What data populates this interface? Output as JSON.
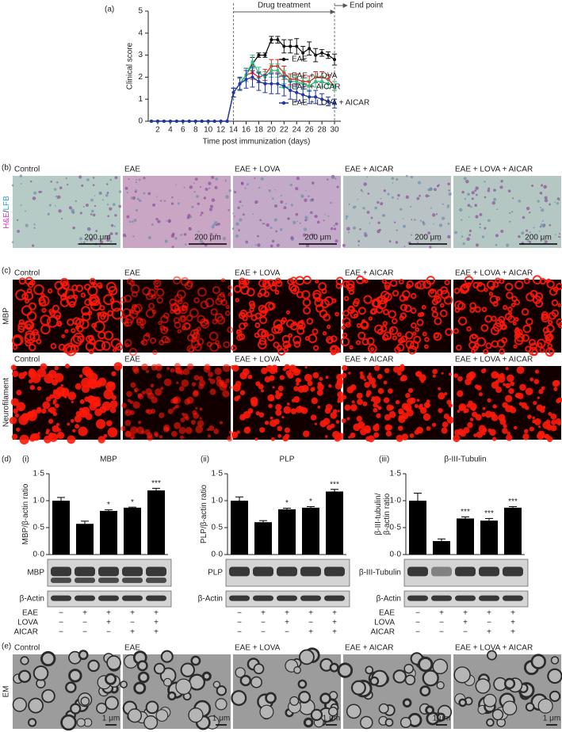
{
  "chart_data": [
    {
      "type": "line",
      "panel": "(a)",
      "y_label": "Clinical score",
      "x_label": "Time post immunization (days)",
      "x": [
        1,
        2,
        3,
        4,
        5,
        6,
        7,
        8,
        9,
        10,
        11,
        12,
        13,
        14,
        15,
        16,
        17,
        18,
        19,
        20,
        21,
        22,
        23,
        24,
        25,
        26,
        27,
        28,
        29,
        30
      ],
      "xlim": [
        0.5,
        31
      ],
      "xticks": [
        2,
        4,
        6,
        8,
        10,
        12,
        14,
        16,
        18,
        20,
        22,
        24,
        26,
        28,
        30
      ],
      "ylim": [
        0,
        5
      ],
      "yticks": [
        0,
        1,
        2,
        3,
        4,
        5
      ],
      "legend": "right",
      "annotations": [
        {
          "text": "Drug treatment",
          "from": 14,
          "to": 30
        },
        {
          "text": "End point",
          "x": 30
        }
      ],
      "series": [
        {
          "name": "EAE",
          "color": "#111111",
          "values": [
            0,
            0,
            0,
            0,
            0,
            0,
            0,
            0,
            0,
            0,
            0,
            0,
            0,
            1.3,
            1.7,
            2.1,
            2.6,
            3.0,
            3.0,
            3.7,
            3.7,
            3.4,
            3.4,
            3.4,
            3.1,
            3.3,
            3.0,
            3.1,
            3.0,
            2.8
          ],
          "errors": [
            null,
            null,
            null,
            null,
            null,
            null,
            null,
            null,
            null,
            null,
            null,
            null,
            null,
            0.2,
            0.25,
            0.3,
            0.3,
            0.1,
            0.1,
            0.15,
            0.15,
            0.3,
            0.3,
            0.35,
            0.3,
            0.3,
            0.3,
            0.15,
            0.15,
            0.25
          ]
        },
        {
          "name": "EAE + LOVA",
          "color": "#e0251b",
          "values": [
            0,
            0,
            0,
            0,
            0,
            0,
            0,
            0,
            0,
            0,
            0,
            0,
            0,
            1.3,
            1.7,
            2.1,
            2.2,
            2.0,
            2.1,
            2.5,
            2.5,
            2.2,
            1.9,
            1.9,
            1.8,
            1.8,
            2.0,
            2.0,
            1.9,
            1.6
          ],
          "errors": [
            null,
            null,
            null,
            null,
            null,
            null,
            null,
            null,
            null,
            null,
            null,
            null,
            null,
            0.2,
            0.25,
            0.3,
            0.3,
            0.25,
            0.25,
            0.3,
            0.3,
            0.3,
            0.25,
            0.25,
            0.25,
            0.25,
            0.25,
            0.25,
            0.2,
            0.2
          ]
        },
        {
          "name": "EAE + AICAR",
          "color": "#2fbf86",
          "values": [
            0,
            0,
            0,
            0,
            0,
            0,
            0,
            0,
            0,
            0,
            0,
            0,
            0,
            1.3,
            1.7,
            2.1,
            2.7,
            2.2,
            2.0,
            2.3,
            2.3,
            2.0,
            1.8,
            1.8,
            1.7,
            1.6,
            1.8,
            1.8,
            1.7,
            1.6
          ],
          "errors": [
            null,
            null,
            null,
            null,
            null,
            null,
            null,
            null,
            null,
            null,
            null,
            null,
            null,
            0.2,
            0.25,
            0.3,
            0.3,
            0.25,
            0.25,
            0.3,
            0.3,
            0.3,
            0.25,
            0.25,
            0.25,
            0.25,
            0.25,
            0.25,
            0.2,
            0.2
          ]
        },
        {
          "name": "EAE + LOVA + AICAR",
          "color": "#1f35a8",
          "values": [
            0,
            0,
            0,
            0,
            0,
            0,
            0,
            0,
            0,
            0,
            0,
            0,
            0,
            1.3,
            1.7,
            1.9,
            2.0,
            1.8,
            1.7,
            1.7,
            1.7,
            1.6,
            1.4,
            1.3,
            1.2,
            1.1,
            1.1,
            1.0,
            0.9,
            0.8
          ],
          "errors": [
            null,
            null,
            null,
            null,
            null,
            null,
            null,
            null,
            null,
            null,
            null,
            null,
            null,
            0.2,
            0.3,
            0.4,
            0.45,
            0.4,
            0.4,
            0.45,
            0.45,
            0.45,
            0.4,
            0.4,
            0.35,
            0.3,
            0.3,
            0.25,
            0.2,
            0.2
          ]
        }
      ]
    },
    {
      "type": "bar",
      "panel": "(i)",
      "title": "MBP",
      "y_label": [
        "MBP/β-actin ratio"
      ],
      "categories": [
        null,
        null,
        null,
        null,
        null
      ],
      "color": "#000000",
      "values": [
        1.0,
        0.57,
        0.81,
        0.87,
        1.19
      ],
      "errors": [
        0.06,
        0.05,
        0.02,
        0.01,
        0.04
      ],
      "annotations": [
        null,
        null,
        "*",
        "*",
        "***"
      ],
      "ylim": [
        0,
        1.5
      ],
      "yticks": [
        {
          "value": 0,
          "label": "0·0"
        },
        {
          "value": 0.5,
          "label": "0·5"
        },
        {
          "value": 1,
          "label": "1·0"
        },
        {
          "value": 1.5,
          "label": "1·5"
        }
      ],
      "blot_labels": [
        "MBP",
        "β-Actin"
      ],
      "show_treatment_labels": true
    },
    {
      "type": "bar",
      "panel": "(ii)",
      "title": "PLP",
      "y_label": [
        "PLP/β-actin ratio"
      ],
      "categories": [
        null,
        null,
        null,
        null,
        null
      ],
      "color": "#000000",
      "values": [
        1.0,
        0.6,
        0.84,
        0.87,
        1.17
      ],
      "errors": [
        0.07,
        0.03,
        0.02,
        0.02,
        0.04
      ],
      "annotations": [
        null,
        null,
        "*",
        "*",
        "***"
      ],
      "ylim": [
        0,
        1.5
      ],
      "yticks": [
        {
          "value": 0,
          "label": "0·0"
        },
        {
          "value": 0.5,
          "label": "0·5"
        },
        {
          "value": 1,
          "label": "1·0"
        },
        {
          "value": 1.5,
          "label": "1·5"
        }
      ],
      "blot_labels": [
        "PLP",
        "β-Actin"
      ],
      "show_treatment_labels": false
    },
    {
      "type": "bar",
      "panel": "(iii)",
      "title": "β-III-Tubulin",
      "y_label": [
        "β-III-tubulin/",
        "β-actin ratio"
      ],
      "categories": [
        null,
        null,
        null,
        null,
        null
      ],
      "color": "#000000",
      "values": [
        1.0,
        0.25,
        0.67,
        0.63,
        0.87
      ],
      "errors": [
        0.14,
        0.04,
        0.03,
        0.04,
        0.02
      ],
      "annotations": [
        null,
        null,
        "***",
        "***",
        "***"
      ],
      "ylim": [
        0,
        1.5
      ],
      "yticks": [
        {
          "value": 0,
          "label": "0·0"
        },
        {
          "value": 0.5,
          "label": "0·5"
        },
        {
          "value": 1,
          "label": "1·0"
        },
        {
          "value": 1.5,
          "label": "1·5"
        }
      ],
      "blot_labels": [
        "β-III-Tubulin",
        "β-Actin"
      ],
      "show_treatment_labels": true
    }
  ],
  "panels": {
    "b": "(b)",
    "c": "(c)",
    "d": "(d)",
    "e": "(e)"
  },
  "columns": [
    "Control",
    "EAE",
    "EAE + LOVA",
    "EAE + AICAR",
    "EAE + LOVA + AICAR"
  ],
  "row_labels": {
    "he": "H&E",
    "slash": "/",
    "lfb": "LFB",
    "mbp": "MBP",
    "nf": "Neurofilament",
    "em": "EM"
  },
  "scale_bars": {
    "he": "200 μm",
    "em": "1 μm"
  },
  "treatments": [
    {
      "name": "EAE",
      "signs": [
        "−",
        "+",
        "+",
        "+",
        "+"
      ]
    },
    {
      "name": "LOVA",
      "signs": [
        "−",
        "−",
        "+",
        "−",
        "+"
      ]
    },
    {
      "name": "AICAR",
      "signs": [
        "−",
        "−",
        "−",
        "+",
        "+"
      ]
    }
  ]
}
